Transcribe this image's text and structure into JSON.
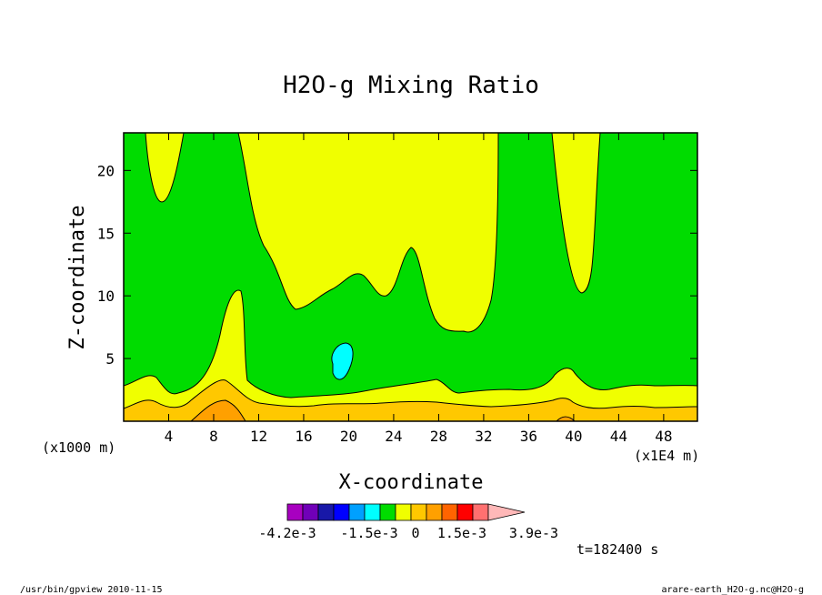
{
  "chart_data": {
    "type": "contour",
    "title": "H2O-g Mixing Ratio",
    "xlabel": "X-coordinate",
    "ylabel": "Z-coordinate",
    "x_units": "(x1E4 m)",
    "y_units": "(x1000 m)",
    "xlim": [
      0,
      51
    ],
    "ylim": [
      0,
      23
    ],
    "xticks": [
      4,
      8,
      12,
      16,
      20,
      24,
      28,
      32,
      36,
      40,
      44,
      48
    ],
    "yticks": [
      5,
      10,
      15,
      20
    ],
    "colorbar": {
      "colors": [
        "#a800c0",
        "#7000b8",
        "#1818a8",
        "#0000ff",
        "#00a0ff",
        "#00ffff",
        "#00dc00",
        "#f0ff00",
        "#ffc800",
        "#ffa000",
        "#ff6400",
        "#ff0000",
        "#ff7070",
        "#ffb8b8"
      ],
      "labels": [
        "-4.2e-3",
        "-1.5e-3",
        "0",
        "1.5e-3",
        "3.9e-3"
      ]
    },
    "regions": [
      {
        "name": "background",
        "color": "#00dc00",
        "level": "green"
      },
      {
        "name": "upper-yellow",
        "color": "#f0ff00"
      },
      {
        "name": "cyan-pocket",
        "color": "#00ffff"
      },
      {
        "name": "near-surface-yellow",
        "color": "#f0ff00"
      },
      {
        "name": "near-surface-gold",
        "color": "#ffc800"
      },
      {
        "name": "near-surface-orange",
        "color": "#ffa000"
      }
    ],
    "time_label": "t=182400 s"
  },
  "footer": {
    "left": "/usr/bin/gpview  2010-11-15",
    "right": "arare-earth_H2O-g.nc@H2O-g"
  }
}
